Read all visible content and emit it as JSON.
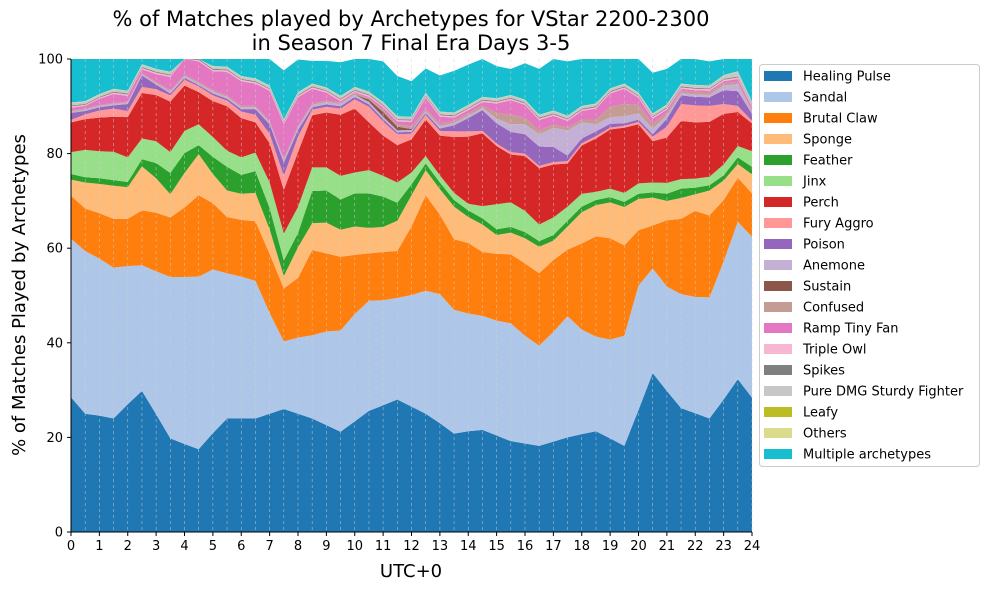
{
  "chart_data": {
    "type": "area",
    "stacked": true,
    "title_lines": [
      "% of Matches played by Archetypes for VStar 2200-2300",
      "in Season 7 Final Era Days 3-5"
    ],
    "xlabel": "UTC+0",
    "ylabel": "% of Matches Played by Archetypes",
    "xlim": [
      0,
      24
    ],
    "ylim": [
      0,
      100
    ],
    "x_ticks": [
      0,
      1,
      2,
      3,
      4,
      5,
      6,
      7,
      8,
      9,
      10,
      11,
      12,
      13,
      14,
      15,
      16,
      17,
      18,
      19,
      20,
      21,
      22,
      23,
      24
    ],
    "y_ticks": [
      0,
      20,
      40,
      60,
      80,
      100
    ],
    "grid": "vertical dashed at half-hour steps",
    "legend_position": "right, outside plot",
    "x": [
      0,
      0.5,
      1,
      1.5,
      2,
      2.5,
      3,
      3.5,
      4,
      4.5,
      5,
      5.5,
      6,
      6.5,
      7,
      7.5,
      8,
      8.5,
      9,
      9.5,
      10,
      10.5,
      11,
      11.5,
      12,
      12.5,
      13,
      13.5,
      14,
      14.5,
      15,
      15.5,
      16,
      16.5,
      17,
      17.5,
      18,
      18.5,
      19,
      19.5,
      20,
      20.5,
      21,
      21.5,
      22,
      22.5,
      23,
      23.5,
      24
    ],
    "series": [
      {
        "name": "Healing Pulse",
        "color": "#1f77b4",
        "values": [
          28.5,
          25,
          24.6,
          24,
          27,
          29.8,
          24.9,
          19.8,
          18.6,
          17.5,
          20.9,
          24,
          24,
          24,
          25,
          26,
          25,
          24,
          22.6,
          21.2,
          23.4,
          25.6,
          26.8,
          28,
          26.5,
          25,
          23,
          20.8,
          21.3,
          21.6,
          20.4,
          19.2,
          18.7,
          18.2,
          19.1,
          20,
          20.7,
          21.3,
          19.8,
          18.2,
          25.8,
          33.6,
          29.8,
          26.2,
          25.1,
          24,
          28,
          32.3,
          28.4
        ]
      },
      {
        "name": "Sandal",
        "color": "#aec7e8",
        "values": [
          33.5,
          34.4,
          33.2,
          31.9,
          29.2,
          26.6,
          30.2,
          34.1,
          35.3,
          36.5,
          34.6,
          30.7,
          30,
          29.1,
          21.3,
          14.3,
          16.1,
          17.6,
          19.8,
          21.4,
          22.7,
          23.3,
          22.2,
          21.5,
          23.6,
          26,
          27.3,
          26.2,
          24.9,
          24.1,
          24.3,
          24.9,
          22.8,
          21.2,
          23.2,
          25.6,
          22.1,
          20,
          20.9,
          23.3,
          26.3,
          22.1,
          22.1,
          24.1,
          24.6,
          25.6,
          29.2,
          33.3,
          34
        ]
      },
      {
        "name": "Brutal Claw",
        "color": "#ff7f0e",
        "values": [
          9.1,
          9,
          9.6,
          10.3,
          10,
          11.6,
          12.4,
          12.6,
          14.7,
          17.2,
          14,
          11.9,
          12,
          12.6,
          12.5,
          11.2,
          12.6,
          18,
          16.5,
          15.6,
          12.5,
          10,
          10.2,
          9.9,
          14.5,
          20.2,
          16.8,
          14.9,
          14.9,
          13.5,
          14.1,
          14.6,
          15.3,
          15.3,
          15.2,
          14.1,
          18.2,
          21.2,
          21.4,
          19.1,
          11.7,
          9.1,
          14,
          15.9,
          18.2,
          17.3,
          13,
          9.3,
          9.2
        ]
      },
      {
        "name": "Sponge",
        "color": "#ffbb78",
        "values": [
          3.4,
          5.5,
          6.2,
          7,
          6.7,
          9.3,
          7.3,
          4.9,
          7.3,
          8.7,
          6.2,
          5.6,
          5.5,
          6,
          5.2,
          2.6,
          6.5,
          5.7,
          6.5,
          5.7,
          6,
          5.4,
          5.3,
          6.4,
          6.6,
          5.3,
          5.4,
          6.9,
          5.5,
          5.8,
          4,
          4.6,
          5.3,
          5.6,
          4.1,
          4.9,
          6.6,
          6.6,
          7.6,
          8.1,
          6.6,
          5.9,
          4.1,
          4.4,
          3.5,
          5.3,
          4.1,
          2.9,
          4
        ]
      },
      {
        "name": "Feather",
        "color": "#2ca02c",
        "values": [
          1.2,
          1.1,
          1.2,
          1.2,
          1.1,
          1.5,
          3.2,
          4.5,
          4.2,
          1.9,
          3.6,
          5,
          4,
          4.6,
          4.5,
          3.3,
          3,
          6.8,
          6.8,
          6.4,
          7,
          7.3,
          6.4,
          3.8,
          2.3,
          1.4,
          1.4,
          1.4,
          1.4,
          1.3,
          1.2,
          1.2,
          1.3,
          1.2,
          1.2,
          1.2,
          1.2,
          1.1,
          1.1,
          1.1,
          1.1,
          1.1,
          1.5,
          2,
          1.4,
          1.1,
          1.1,
          1.4,
          1.6
        ]
      },
      {
        "name": "Jinx",
        "color": "#98df8a",
        "values": [
          4.6,
          5.8,
          5.7,
          6,
          5.2,
          4.4,
          4.6,
          4.4,
          4.7,
          4.4,
          4.2,
          3.4,
          3.7,
          3.9,
          5.4,
          5.7,
          5.5,
          5,
          4.9,
          5,
          4.4,
          4.9,
          4.4,
          4.3,
          2.5,
          1.6,
          1.5,
          1.5,
          1.4,
          2.6,
          5.3,
          5.2,
          4.5,
          3.5,
          3.7,
          3,
          2.7,
          1.7,
          1.8,
          1.9,
          2.2,
          2.1,
          2.3,
          2,
          1.9,
          1.8,
          2.3,
          2.4,
          3.3
        ]
      },
      {
        "name": "Perch",
        "color": "#d62728",
        "values": [
          6.3,
          6.5,
          7.1,
          7.4,
          8.5,
          9.6,
          9.8,
          10.7,
          9.6,
          6.8,
          7.6,
          9.4,
          8.3,
          6.4,
          8.3,
          9.2,
          11.6,
          11,
          11.6,
          12.9,
          13.5,
          10.1,
          8.5,
          7.9,
          7,
          7.7,
          8.4,
          11.8,
          14.2,
          15.4,
          12.3,
          10.1,
          11.6,
          11.9,
          11.2,
          9.1,
          10.2,
          11.3,
          12.5,
          13.8,
          12.5,
          8.7,
          9.6,
          12.3,
          11.9,
          11.6,
          10.7,
          7.2,
          5.9
        ]
      },
      {
        "name": "Fury Aggro",
        "color": "#ff9896",
        "values": [
          0.5,
          1,
          1.5,
          1.7,
          1.3,
          1.3,
          1.2,
          1.3,
          1.2,
          1.2,
          1.2,
          1.2,
          1.4,
          1.6,
          2,
          3,
          3.3,
          1.2,
          1.2,
          1.3,
          2,
          3.3,
          3,
          2.3,
          1.2,
          1,
          1,
          1.2,
          1.1,
          0.5,
          0.5,
          0.5,
          0.5,
          0.5,
          0.5,
          0.5,
          0.5,
          0.5,
          0.4,
          0.4,
          0.5,
          1,
          2.3,
          3.6,
          3.6,
          3.4,
          2.1,
          1.3,
          0.5
        ]
      },
      {
        "name": "Poison",
        "color": "#9467bd",
        "values": [
          1.5,
          0.7,
          0.7,
          0.7,
          1.5,
          2.4,
          1,
          0.4,
          0.4,
          0.3,
          0.4,
          0.4,
          0.5,
          1.2,
          2,
          2.8,
          1.4,
          0.5,
          0.5,
          0.5,
          0.5,
          0.5,
          0.5,
          0.4,
          0.4,
          0.4,
          0.5,
          1.3,
          2.8,
          4.4,
          4.3,
          4.3,
          4.1,
          4.1,
          3.2,
          1.2,
          1,
          1,
          0.8,
          0.5,
          0.5,
          0.5,
          1.7,
          1.8,
          1.8,
          1.8,
          2.9,
          3.1,
          1.5
        ]
      },
      {
        "name": "Anemone",
        "color": "#c5b0d5",
        "values": [
          0.3,
          0.3,
          0.3,
          0.3,
          0.3,
          0.3,
          0.3,
          0.4,
          0.4,
          0.4,
          0.4,
          0.4,
          0.4,
          0.4,
          0.4,
          0.5,
          0.5,
          0.5,
          0.5,
          0.5,
          0.5,
          0.5,
          0.5,
          0.4,
          0.4,
          0.4,
          0.5,
          0.5,
          0.5,
          0.5,
          1,
          1.6,
          2.1,
          2.6,
          4,
          5.3,
          3.4,
          1.5,
          1.4,
          1.5,
          1.3,
          1.2,
          0.7,
          0.5,
          0.5,
          0.5,
          1,
          1.5,
          0.5
        ]
      },
      {
        "name": "Sustain",
        "color": "#8c564b",
        "values": [
          0,
          0,
          0,
          0,
          0,
          0,
          0,
          0,
          0,
          0,
          0,
          0,
          0,
          0,
          0,
          0,
          0,
          0,
          0,
          0,
          0,
          0.5,
          1,
          0.8,
          0.2,
          0,
          0,
          0,
          0,
          0,
          0,
          0,
          0,
          0,
          0,
          0,
          0,
          0,
          0,
          0,
          0,
          0,
          0,
          0,
          0,
          0,
          0,
          0,
          0
        ]
      },
      {
        "name": "Confused",
        "color": "#c49c94",
        "values": [
          0.3,
          0.2,
          0.2,
          0.2,
          0.2,
          0.2,
          0.3,
          0.3,
          0.3,
          0.3,
          0.3,
          0.3,
          0.3,
          0.3,
          0.3,
          0.3,
          0.3,
          0.3,
          0.3,
          0.3,
          0.3,
          0.3,
          0.5,
          0.5,
          0.5,
          0.5,
          0.5,
          0.5,
          0.5,
          0.5,
          1.2,
          2,
          1.4,
          0.8,
          0.7,
          0.6,
          0.6,
          1,
          2.2,
          2.6,
          1.8,
          1,
          0.6,
          0.5,
          0.5,
          0.5,
          0.5,
          0.5,
          0.3
        ]
      },
      {
        "name": "Ramp Tiny Fan",
        "color": "#e377c2",
        "values": [
          0.5,
          0.6,
          1.3,
          1.9,
          1.2,
          0.8,
          1.6,
          2.8,
          3.8,
          4.3,
          4,
          5,
          5.2,
          4.7,
          6.4,
          7.3,
          6.1,
          3.1,
          1.7,
          0.3,
          0.2,
          0.3,
          0.5,
          0.6,
          1,
          2.3,
          1.5,
          0.6,
          0.7,
          0.7,
          2,
          3.1,
          2.7,
          2.2,
          1.9,
          1.4,
          1.8,
          2.3,
          2.8,
          3.2,
          1.5,
          1.1,
          0.6,
          0.4,
          0.4,
          0.4,
          0.4,
          0.6,
          0.6
        ]
      },
      {
        "name": "Triple Owl",
        "color": "#f7b6d2",
        "values": [
          0.3,
          0.2,
          0.2,
          0.3,
          0.3,
          0.3,
          0.3,
          0.3,
          0.3,
          0.3,
          0.3,
          0.3,
          0.3,
          0.3,
          0.3,
          0.3,
          0.3,
          0.3,
          0.3,
          0.3,
          0.3,
          0.3,
          0.3,
          0.3,
          0.3,
          0.3,
          0.3,
          0.3,
          0.3,
          0.3,
          0.3,
          0.3,
          0.3,
          0.3,
          0.3,
          0.3,
          0.3,
          0.3,
          0.3,
          0.3,
          0.3,
          0.3,
          0.3,
          0.3,
          0.3,
          0.3,
          0.3,
          0.3,
          0.3
        ]
      },
      {
        "name": "Spikes",
        "color": "#7f7f7f",
        "values": [
          0.2,
          0.2,
          0.2,
          0.2,
          0.2,
          0.2,
          0.2,
          0.2,
          0.2,
          0.2,
          0.2,
          0.2,
          0.2,
          0.2,
          0.2,
          0.2,
          0.2,
          0.2,
          0.2,
          0.2,
          0.2,
          0.2,
          0.2,
          0.2,
          0.2,
          0.2,
          0.2,
          0.2,
          0.2,
          0.2,
          0.2,
          0.2,
          0.2,
          0.2,
          0.2,
          0.2,
          0.2,
          0.2,
          0.2,
          0.2,
          0.2,
          0.2,
          0.2,
          0.2,
          0.2,
          0.2,
          0.2,
          0.2,
          0.2
        ]
      },
      {
        "name": "Pure DMG Sturdy Fighter",
        "color": "#c7c7c7",
        "values": [
          0.5,
          0.5,
          0.5,
          0.5,
          0.5,
          0.5,
          0.5,
          0.5,
          0.5,
          0.5,
          0.5,
          0.5,
          0.5,
          0.5,
          0.5,
          0.5,
          0.5,
          0.5,
          0.5,
          0.5,
          0.5,
          0.5,
          0.5,
          0.5,
          0.5,
          0.5,
          0.5,
          0.5,
          0.5,
          0.5,
          0.5,
          0.5,
          0.5,
          0.5,
          0.5,
          0.5,
          0.5,
          0.5,
          0.5,
          0.5,
          0.5,
          0.5,
          0.5,
          0.5,
          0.5,
          0.5,
          0.7,
          1,
          0.6
        ]
      },
      {
        "name": "Leafy",
        "color": "#bcbd22",
        "values": [
          0,
          0,
          0,
          0,
          0,
          0,
          0,
          0,
          0,
          0,
          0,
          0,
          0,
          0,
          0,
          0,
          0,
          0,
          0,
          0,
          0,
          0,
          0,
          0,
          0,
          0,
          0,
          0,
          0,
          0,
          0,
          0,
          0,
          0,
          0,
          0,
          0,
          0,
          0,
          0,
          0,
          0,
          0,
          0,
          0,
          0,
          0,
          0,
          0
        ]
      },
      {
        "name": "Others",
        "color": "#dbdb8d",
        "values": [
          0.1,
          0.1,
          0.1,
          0.1,
          0.1,
          0.1,
          0.1,
          0.1,
          0.1,
          0.1,
          0.1,
          0.1,
          0.1,
          0.1,
          0.1,
          0.1,
          0.1,
          0.1,
          0.1,
          0.1,
          0.1,
          0.1,
          0.1,
          0.1,
          0.1,
          0.1,
          0.1,
          0.1,
          0.1,
          0.1,
          0.1,
          0.1,
          0.1,
          0.1,
          0.1,
          0.1,
          0.1,
          0.1,
          0.1,
          0.1,
          0.1,
          0.1,
          0.1,
          0.1,
          0.1,
          0.1,
          0.1,
          0.1,
          0.1
        ]
      },
      {
        "name": "Multiple archetypes",
        "color": "#17becf",
        "values": [
          9.2,
          10.4,
          9.4,
          8.3,
          7.2,
          3.4,
          4.4,
          3.3,
          2.2,
          1.4,
          1.6,
          3,
          3.6,
          4.1,
          6,
          10.3,
          6.9,
          4.8,
          5.6,
          7.1,
          6.4,
          6.9,
          8.6,
          8.5,
          7.5,
          5.1,
          7.6,
          8.8,
          8.5,
          8.3,
          6.8,
          5.5,
          7.7,
          9.7,
          10.9,
          11.5,
          10.7,
          11.7,
          7.6,
          7.3,
          7.3,
          8.6,
          7.5,
          6.7,
          6.4,
          5.1,
          4.9,
          4.3,
          9.3
        ]
      }
    ]
  }
}
